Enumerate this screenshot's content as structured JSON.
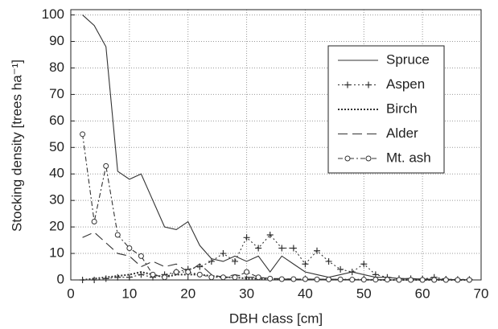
{
  "chart_data": {
    "type": "line",
    "x_label": "DBH class [cm]",
    "y_label": "Stocking density [trees ha⁻¹]",
    "x": [
      2,
      4,
      6,
      8,
      10,
      12,
      14,
      16,
      18,
      20,
      22,
      24,
      26,
      28,
      30,
      32,
      34,
      36,
      38,
      40,
      42,
      44,
      46,
      48,
      50,
      52,
      54,
      56,
      58,
      60,
      62,
      64,
      66,
      68
    ],
    "series": [
      {
        "name": "Spruce",
        "color": "#333333",
        "dash": "solid",
        "marker": "none",
        "values": [
          100,
          96,
          88,
          41,
          38,
          40,
          30,
          20,
          19,
          22,
          13,
          8,
          7,
          9,
          7,
          9,
          3,
          9,
          6,
          3,
          2,
          1,
          2,
          3,
          2,
          1,
          1,
          0.5,
          0.5,
          0.3,
          0.3,
          0.2,
          0.1,
          0
        ]
      },
      {
        "name": "Aspen",
        "color": "#333333",
        "dash": "dotted",
        "marker": "plus",
        "values": [
          0,
          0,
          0.5,
          1,
          1,
          2,
          1,
          2,
          3,
          4,
          5,
          7,
          10,
          7,
          16,
          12,
          17,
          12,
          12,
          6,
          11,
          7,
          4,
          3,
          6,
          2,
          1,
          0.5,
          0.5,
          0.3,
          1,
          0.3,
          0.2,
          0.2
        ]
      },
      {
        "name": "Birch",
        "color": "#333333",
        "dash": "dense-dotted",
        "marker": "none",
        "values": [
          0,
          0.5,
          1,
          1.5,
          2,
          3,
          2,
          1,
          2,
          2,
          2,
          1.5,
          1,
          1,
          0.5,
          0.5,
          0.3,
          0.3,
          0.2,
          0.2,
          0.2,
          0.1,
          0.1,
          0.1,
          0.1,
          0,
          0,
          0,
          0,
          0,
          0,
          0,
          0,
          0
        ]
      },
      {
        "name": "Alder",
        "color": "#333333",
        "dash": "long-dash",
        "marker": "none",
        "values": [
          16,
          18,
          14,
          10,
          9,
          5,
          7,
          5,
          6,
          3,
          6,
          2,
          1,
          2,
          1,
          1,
          0.5,
          0.5,
          0.3,
          0.3,
          0.3,
          0.2,
          0.2,
          0.1,
          0.1,
          0.1,
          0,
          0,
          0,
          0,
          0,
          0,
          0,
          0
        ]
      },
      {
        "name": "Mt. ash",
        "color": "#333333",
        "dash": "dash-dot",
        "marker": "circle",
        "values": [
          55,
          22,
          43,
          17,
          12,
          9,
          2,
          1,
          3,
          3,
          2,
          1,
          1,
          1,
          3,
          1,
          0.5,
          0.3,
          0.3,
          0.3,
          0.2,
          0.2,
          0.2,
          0.1,
          0.1,
          0.1,
          0.1,
          0,
          0,
          0,
          0,
          0,
          0,
          0
        ]
      }
    ],
    "xlim": [
      0,
      70
    ],
    "xticks": [
      0,
      10,
      20,
      30,
      40,
      50,
      60,
      70
    ],
    "ylim": [
      0,
      102
    ],
    "yticks": [
      0,
      10,
      20,
      30,
      40,
      50,
      60,
      70,
      80,
      90,
      100
    ],
    "grid": true,
    "legend": "upper right"
  }
}
